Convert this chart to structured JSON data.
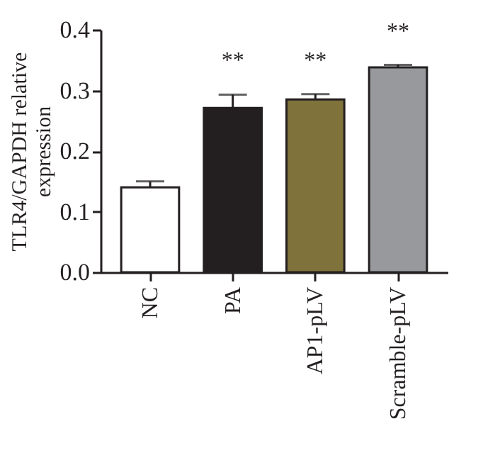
{
  "chart_data": {
    "type": "bar",
    "ylabel": "TLR4/GAPDH relative expression",
    "categories": [
      "NC",
      "PA",
      "AP1-pLV",
      "Scramble-pLV"
    ],
    "values": [
      0.14,
      0.271,
      0.285,
      0.338
    ],
    "colors": [
      "#ffffff",
      "#231f20",
      "#7f723a",
      "#97999c"
    ],
    "errors": [
      [
        0.14,
        0.15
      ],
      [
        0.271,
        0.293
      ],
      [
        0.285,
        0.294
      ],
      [
        0.338,
        0.342
      ]
    ],
    "annotations": [
      "**",
      "**",
      "**"
    ],
    "ylim": [
      0,
      0.4
    ],
    "yticks": [
      {
        "value": 0,
        "label": "0.0"
      },
      {
        "value": 0.1,
        "label": "0.1"
      },
      {
        "value": 0.2,
        "label": "0.2"
      },
      {
        "value": 0.3,
        "label": "0.3"
      },
      {
        "value": 0.4,
        "label": "0.4"
      }
    ],
    "grid": false
  }
}
